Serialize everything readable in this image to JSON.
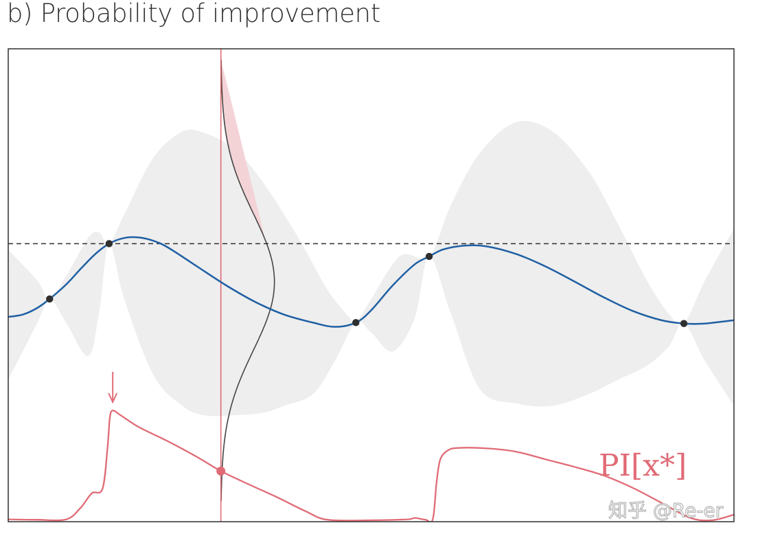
{
  "title": "b) Probability of improvement",
  "watermark": "知乎 @Re-er",
  "colors": {
    "mean": "#1f5fa3",
    "band": "#eeeeee",
    "acquisition": "#e06b76",
    "threshold": "#2d2d2d",
    "points": "#2f2f2f"
  },
  "chart_data": {
    "type": "line",
    "xlim": [
      0,
      1
    ],
    "ylim": [
      0,
      1
    ],
    "grid": false,
    "xlabel": "",
    "ylabel": "",
    "threshold": 0.588,
    "query_x": 0.293,
    "query_pi": 0.107,
    "arrow_x": 0.144,
    "acquisition_label": "PI[x*]",
    "observations": [
      {
        "x": 0.057,
        "y": 0.471
      },
      {
        "x": 0.139,
        "y": 0.588
      },
      {
        "x": 0.479,
        "y": 0.421
      },
      {
        "x": 0.58,
        "y": 0.561
      },
      {
        "x": 0.931,
        "y": 0.419
      }
    ],
    "series": [
      {
        "name": "mean",
        "x": [
          0.0,
          0.02,
          0.04,
          0.057,
          0.08,
          0.1,
          0.12,
          0.139,
          0.16,
          0.18,
          0.2,
          0.22,
          0.26,
          0.3,
          0.34,
          0.38,
          0.42,
          0.45,
          0.479,
          0.5,
          0.53,
          0.56,
          0.58,
          0.6,
          0.63,
          0.66,
          0.7,
          0.74,
          0.78,
          0.82,
          0.86,
          0.9,
          0.931,
          0.96,
          1.0
        ],
        "y": [
          0.433,
          0.438,
          0.452,
          0.471,
          0.502,
          0.535,
          0.566,
          0.588,
          0.6,
          0.601,
          0.594,
          0.58,
          0.54,
          0.5,
          0.465,
          0.438,
          0.421,
          0.412,
          0.421,
          0.447,
          0.5,
          0.544,
          0.561,
          0.576,
          0.584,
          0.582,
          0.566,
          0.54,
          0.508,
          0.475,
          0.446,
          0.426,
          0.419,
          0.419,
          0.426
        ]
      },
      {
        "name": "band_upper",
        "x": [
          0.0,
          0.04,
          0.057,
          0.08,
          0.11,
          0.125,
          0.139,
          0.16,
          0.2,
          0.24,
          0.27,
          0.31,
          0.35,
          0.4,
          0.44,
          0.47,
          0.479,
          0.5,
          0.54,
          0.58,
          0.61,
          0.65,
          0.7,
          0.75,
          0.8,
          0.84,
          0.88,
          0.91,
          0.931,
          0.96,
          1.0
        ],
        "y": [
          0.575,
          0.51,
          0.471,
          0.52,
          0.6,
          0.612,
          0.588,
          0.65,
          0.77,
          0.825,
          0.822,
          0.79,
          0.72,
          0.6,
          0.49,
          0.432,
          0.421,
          0.47,
          0.562,
          0.561,
          0.67,
          0.78,
          0.845,
          0.825,
          0.74,
          0.63,
          0.51,
          0.44,
          0.419,
          0.51,
          0.62
        ]
      },
      {
        "name": "band_lower",
        "x": [
          0.0,
          0.04,
          0.057,
          0.08,
          0.11,
          0.125,
          0.139,
          0.16,
          0.2,
          0.24,
          0.27,
          0.31,
          0.35,
          0.38,
          0.42,
          0.45,
          0.479,
          0.5,
          0.53,
          0.56,
          0.58,
          0.61,
          0.65,
          0.7,
          0.75,
          0.8,
          0.84,
          0.88,
          0.91,
          0.931,
          0.96,
          1.0
        ],
        "y": [
          0.3,
          0.42,
          0.471,
          0.42,
          0.35,
          0.44,
          0.588,
          0.47,
          0.31,
          0.245,
          0.225,
          0.225,
          0.23,
          0.245,
          0.27,
          0.34,
          0.421,
          0.4,
          0.36,
          0.43,
          0.561,
          0.44,
          0.28,
          0.25,
          0.245,
          0.27,
          0.3,
          0.33,
          0.37,
          0.419,
          0.34,
          0.245
        ]
      },
      {
        "name": "PI",
        "x": [
          0.0,
          0.04,
          0.08,
          0.1,
          0.115,
          0.13,
          0.137,
          0.14,
          0.144,
          0.155,
          0.18,
          0.22,
          0.26,
          0.293,
          0.33,
          0.37,
          0.41,
          0.44,
          0.5,
          0.55,
          0.56,
          0.575,
          0.585,
          0.59,
          0.595,
          0.605,
          0.62,
          0.66,
          0.7,
          0.74,
          0.78,
          0.82,
          0.86,
          0.9,
          0.94,
          0.97,
          1.0
        ],
        "y": [
          0.005,
          0.004,
          0.005,
          0.03,
          0.06,
          0.07,
          0.16,
          0.22,
          0.235,
          0.225,
          0.2,
          0.17,
          0.137,
          0.107,
          0.08,
          0.052,
          0.022,
          0.004,
          0.003,
          0.005,
          0.008,
          0.004,
          0.005,
          0.08,
          0.13,
          0.15,
          0.156,
          0.155,
          0.148,
          0.132,
          0.116,
          0.098,
          0.072,
          0.04,
          0.008,
          0.003,
          0.015
        ]
      }
    ]
  }
}
